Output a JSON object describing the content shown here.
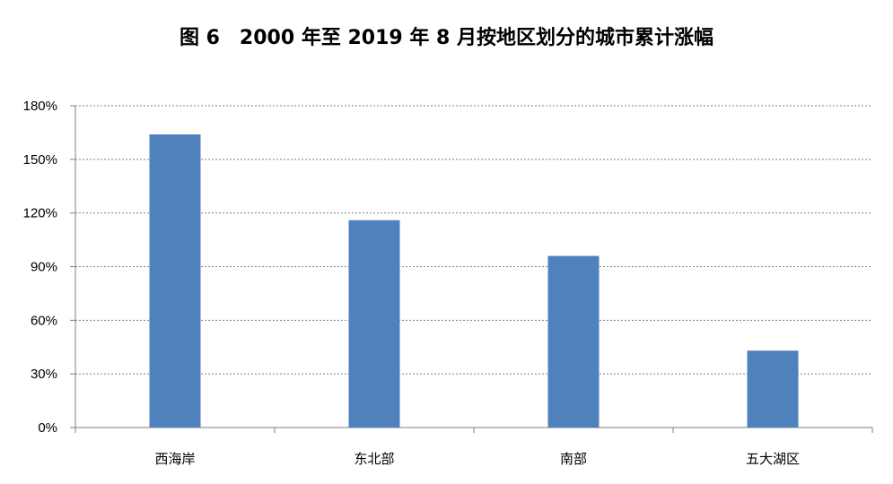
{
  "chart_data": {
    "type": "bar",
    "title": "图 6　2000 年至 2019 年 8 月按地区划分的城市累计涨幅",
    "categories": [
      "西海岸",
      "东北部",
      "南部",
      "五大湖区"
    ],
    "values": [
      164,
      116,
      96,
      43
    ],
    "value_unit": "%",
    "ylim": [
      0,
      180
    ],
    "yticks": [
      0,
      30,
      60,
      90,
      120,
      150,
      180
    ],
    "ytick_labels": [
      "0%",
      "30%",
      "60%",
      "90%",
      "120%",
      "150%",
      "180%"
    ],
    "xlabel": "",
    "ylabel": "",
    "grid": true,
    "legend": "none",
    "colors": {
      "bar": "#4F81BD",
      "grid": "#808080",
      "axis": "#808080"
    }
  }
}
